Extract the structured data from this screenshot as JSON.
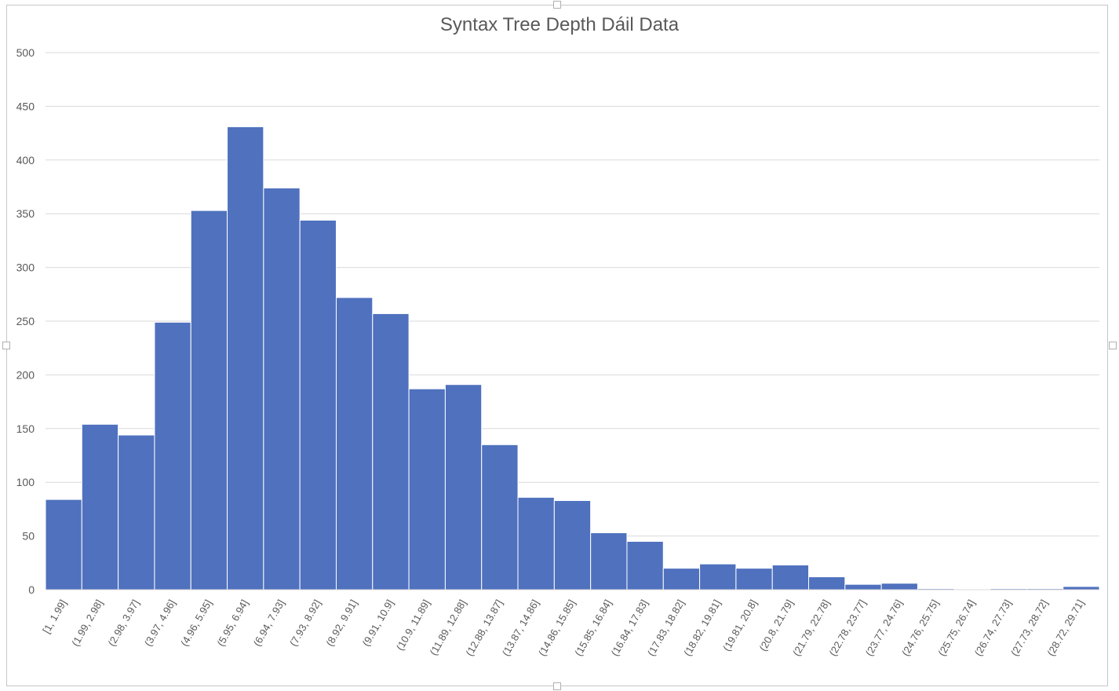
{
  "chart_data": {
    "type": "bar",
    "title": "Syntax Tree Depth Dáil Data",
    "xlabel": "",
    "ylabel": "",
    "ylim": [
      0,
      500
    ],
    "yticks": [
      0,
      50,
      100,
      150,
      200,
      250,
      300,
      350,
      400,
      450,
      500
    ],
    "grid": true,
    "bar_color": "#4f71be",
    "categories": [
      "[1, 1.99]",
      "(1.99, 2.98]",
      "(2.98, 3.97]",
      "(3.97, 4.96]",
      "(4.96, 5.95]",
      "(5.95, 6.94]",
      "(6.94, 7.93]",
      "(7.93, 8.92]",
      "(8.92, 9.91]",
      "(9.91, 10.9]",
      "(10.9, 11.89]",
      "(11.89, 12.88]",
      "(12.88, 13.87]",
      "(13.87, 14.86]",
      "(14.86, 15.85]",
      "(15.85, 16.84]",
      "(16.84, 17.83]",
      "(17.83, 18.82]",
      "(18.82, 19.81]",
      "(19.81, 20.8]",
      "(20.8, 21.79]",
      "(21.79, 22.78]",
      "(22.78, 23.77]",
      "(23.77, 24.76]",
      "(24.76, 25.75]",
      "(25.75, 26.74]",
      "(26.74, 27.73]",
      "(27.73, 28.72]",
      "(28.72, 29.71]"
    ],
    "values": [
      84,
      154,
      144,
      249,
      353,
      431,
      374,
      344,
      272,
      257,
      187,
      191,
      135,
      86,
      83,
      53,
      45,
      20,
      24,
      20,
      23,
      12,
      5,
      6,
      1,
      0,
      1,
      1,
      3
    ]
  }
}
